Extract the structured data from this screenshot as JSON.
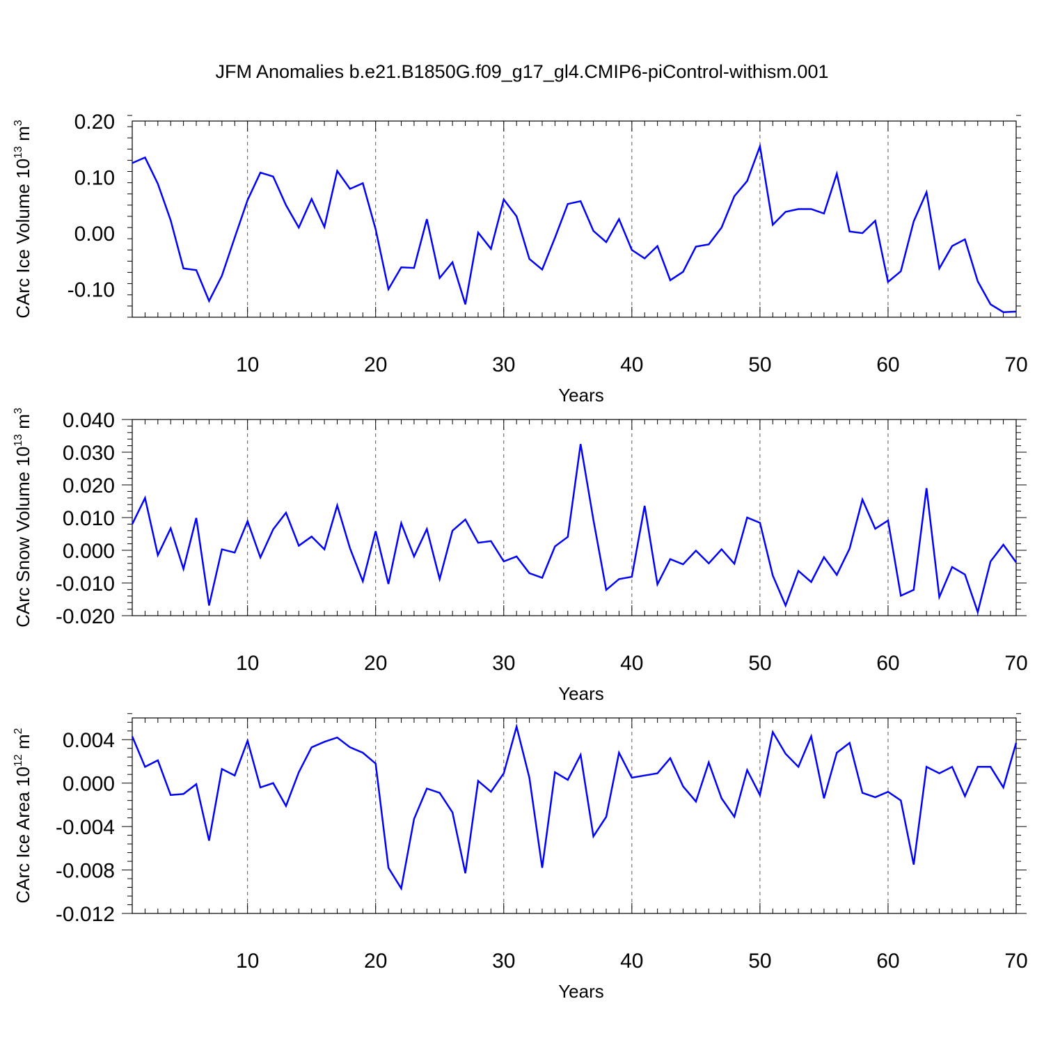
{
  "title": "JFM Anomalies b.e21.B1850G.f09_g17_gl4.CMIP6-piControl-withism.001",
  "chart_data": [
    {
      "type": "line",
      "title": "JFM Anomalies b.e21.B1850G.f09_g17_gl4.CMIP6-piControl-withism.001",
      "xlabel": "Years",
      "ylabel": {
        "main": "CArc Ice Volume 10",
        "exp": "13",
        "unit": " m",
        "unit_exp": "3"
      },
      "xlim": [
        1,
        70
      ],
      "ylim": [
        -0.15,
        0.2
      ],
      "yticks": [
        -0.1,
        0.0,
        0.1,
        0.2
      ],
      "ytick_labels": [
        "-0.10",
        "0.00",
        "0.10",
        "0.20"
      ],
      "xticks": [
        10,
        20,
        30,
        40,
        50,
        60,
        70
      ],
      "xtick_labels": [
        "10",
        "20",
        "30",
        "40",
        "50",
        "60",
        "70"
      ],
      "line_color": "#0000ff",
      "x": [
        1,
        2,
        3,
        4,
        5,
        6,
        7,
        8,
        9,
        10,
        11,
        12,
        13,
        14,
        15,
        16,
        17,
        18,
        19,
        20,
        21,
        22,
        23,
        24,
        25,
        26,
        27,
        28,
        29,
        30,
        31,
        32,
        33,
        34,
        35,
        36,
        37,
        38,
        39,
        40,
        41,
        42,
        43,
        44,
        45,
        46,
        47,
        48,
        49,
        50,
        51,
        52,
        53,
        54,
        55,
        56,
        57,
        58,
        59,
        60,
        61,
        62,
        63,
        64,
        65,
        66,
        67,
        68,
        69,
        70
      ],
      "values": [
        0.125,
        0.135,
        0.088,
        0.023,
        -0.063,
        -0.066,
        -0.121,
        -0.076,
        -0.008,
        0.059,
        0.108,
        0.101,
        0.05,
        0.01,
        0.061,
        0.011,
        0.111,
        0.079,
        0.089,
        0.007,
        -0.1,
        -0.061,
        -0.062,
        0.025,
        -0.08,
        -0.052,
        -0.127,
        0.001,
        -0.028,
        0.06,
        0.03,
        -0.046,
        -0.065,
        -0.008,
        0.052,
        0.057,
        0.004,
        -0.016,
        0.025,
        -0.03,
        -0.045,
        -0.023,
        -0.084,
        -0.069,
        -0.024,
        -0.02,
        0.01,
        0.066,
        0.093,
        0.155,
        0.015,
        0.038,
        0.043,
        0.043,
        0.035,
        0.106,
        0.003,
        0.0,
        0.022,
        -0.087,
        -0.068,
        0.021,
        0.073,
        -0.063,
        -0.023,
        -0.011,
        -0.086,
        -0.127,
        -0.141,
        -0.14
      ]
    },
    {
      "type": "line",
      "xlabel": "Years",
      "ylabel": {
        "main": "CArc Snow Volume 10",
        "exp": "13",
        "unit": " m",
        "unit_exp": "3"
      },
      "xlim": [
        1,
        70
      ],
      "ylim": [
        -0.02,
        0.04
      ],
      "yticks": [
        -0.02,
        -0.01,
        0.0,
        0.01,
        0.02,
        0.03,
        0.04
      ],
      "ytick_labels": [
        "-0.020",
        "-0.010",
        "0.000",
        "0.010",
        "0.020",
        "0.030",
        "0.040"
      ],
      "xticks": [
        10,
        20,
        30,
        40,
        50,
        60,
        70
      ],
      "xtick_labels": [
        "10",
        "20",
        "30",
        "40",
        "50",
        "60",
        "70"
      ],
      "line_color": "#0000ff",
      "x": [
        1,
        2,
        3,
        4,
        5,
        6,
        7,
        8,
        9,
        10,
        11,
        12,
        13,
        14,
        15,
        16,
        17,
        18,
        19,
        20,
        21,
        22,
        23,
        24,
        25,
        26,
        27,
        28,
        29,
        30,
        31,
        32,
        33,
        34,
        35,
        36,
        37,
        38,
        39,
        40,
        41,
        42,
        43,
        44,
        45,
        46,
        47,
        48,
        49,
        50,
        51,
        52,
        53,
        54,
        55,
        56,
        57,
        58,
        59,
        60,
        61,
        62,
        63,
        64,
        65,
        66,
        67,
        68,
        69,
        70
      ],
      "values": [
        0.008,
        0.016,
        -0.0015,
        0.0067,
        -0.0057,
        0.0099,
        -0.0169,
        0.0003,
        -0.0007,
        0.0089,
        -0.0022,
        0.0064,
        0.0115,
        0.0014,
        0.0042,
        0.0003,
        0.0137,
        0.0006,
        -0.0095,
        0.0058,
        -0.0103,
        0.0083,
        -0.0019,
        0.0065,
        -0.0088,
        0.006,
        0.0094,
        0.0023,
        0.0028,
        -0.0034,
        -0.0019,
        -0.007,
        -0.0084,
        0.0012,
        0.0041,
        0.0325,
        0.0093,
        -0.0121,
        -0.0088,
        -0.0081,
        0.0136,
        -0.0104,
        -0.0027,
        -0.0043,
        -0.0001,
        -0.004,
        0.0003,
        -0.0041,
        0.01,
        0.0084,
        -0.0077,
        -0.0169,
        -0.0063,
        -0.0097,
        -0.0021,
        -0.0075,
        0.0005,
        0.0155,
        0.0066,
        0.0091,
        -0.0139,
        -0.0121,
        0.019,
        -0.0143,
        -0.0051,
        -0.0074,
        -0.0189,
        -0.0034,
        0.0017,
        -0.0037
      ]
    },
    {
      "type": "line",
      "xlabel": "Years",
      "ylabel": {
        "main": "CArc Ice Area 10",
        "exp": "12",
        "unit": " m",
        "unit_exp": "2"
      },
      "xlim": [
        1,
        70
      ],
      "ylim": [
        -0.012,
        0.006
      ],
      "yticks": [
        -0.012,
        -0.008,
        -0.004,
        0.0,
        0.004
      ],
      "ytick_labels": [
        "-0.012",
        "-0.008",
        "-0.004",
        "0.000",
        "0.004"
      ],
      "xticks": [
        10,
        20,
        30,
        40,
        50,
        60,
        70
      ],
      "xtick_labels": [
        "10",
        "20",
        "30",
        "40",
        "50",
        "60",
        "70"
      ],
      "line_color": "#0000ff",
      "x": [
        1,
        2,
        3,
        4,
        5,
        6,
        7,
        8,
        9,
        10,
        11,
        12,
        13,
        14,
        15,
        16,
        17,
        18,
        19,
        20,
        21,
        22,
        23,
        24,
        25,
        26,
        27,
        28,
        29,
        30,
        31,
        32,
        33,
        34,
        35,
        36,
        37,
        38,
        39,
        40,
        41,
        42,
        43,
        44,
        45,
        46,
        47,
        48,
        49,
        50,
        51,
        52,
        53,
        54,
        55,
        56,
        57,
        58,
        59,
        60,
        61,
        62,
        63,
        64,
        65,
        66,
        67,
        68,
        69,
        70
      ],
      "values": [
        0.0043,
        0.0015,
        0.0021,
        -0.0011,
        -0.001,
        -0.0001,
        -0.0053,
        0.0013,
        0.0007,
        0.0039,
        -0.0004,
        0.0,
        -0.0021,
        0.001,
        0.0033,
        0.0038,
        0.0042,
        0.0033,
        0.0028,
        0.0018,
        -0.0078,
        -0.0097,
        -0.0033,
        -0.0005,
        -0.0009,
        -0.0027,
        -0.0083,
        0.0002,
        -0.0008,
        0.0009,
        0.0052,
        0.0005,
        -0.0078,
        0.001,
        0.0003,
        0.0026,
        -0.0049,
        -0.0031,
        0.0028,
        0.0005,
        0.0007,
        0.0009,
        0.0023,
        -0.0003,
        -0.0017,
        0.0019,
        -0.0014,
        -0.0031,
        0.0012,
        -0.0011,
        0.0047,
        0.0027,
        0.0015,
        0.0043,
        -0.0014,
        0.0028,
        0.0037,
        -0.0009,
        -0.0013,
        -0.0008,
        -0.0016,
        -0.0075,
        0.0015,
        0.0009,
        0.0015,
        -0.0012,
        0.0015,
        0.0015,
        -0.0004,
        0.0037
      ]
    }
  ]
}
